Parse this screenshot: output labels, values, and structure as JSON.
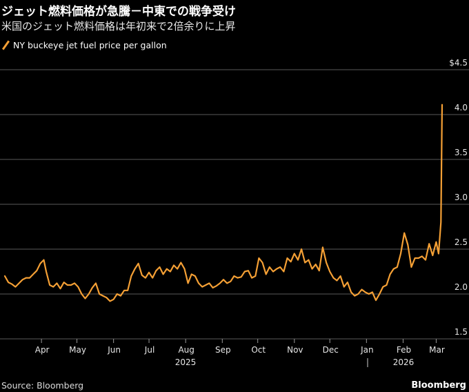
{
  "header": {
    "title": "ジェット燃料価格が急騰－中東での戦争受け",
    "subtitle": "米国のジェット燃料価格は年初来で2倍余りに上昇"
  },
  "footer": {
    "source": "Source: Bloomberg",
    "brand": "Bloomberg"
  },
  "colors": {
    "series": "#f5a035",
    "grid": "#5a5a5a",
    "background": "#000000"
  },
  "chart_data": {
    "type": "line",
    "title": "ジェット燃料価格が急騰－中東での戦争受け",
    "subtitle": "米国のジェット燃料価格は年初来で2倍余りに上昇",
    "xlabel": "",
    "ylabel": "",
    "ylim": [
      1.5,
      4.5
    ],
    "y_ticks": [
      "1.5",
      "2.0",
      "2.5",
      "3.0",
      "3.5",
      "4.0",
      "$4.5"
    ],
    "y_tick_values": [
      1.5,
      2.0,
      2.5,
      3.0,
      3.5,
      4.0,
      4.5
    ],
    "x_month_labels": [
      "Apr",
      "May",
      "Jun",
      "Jul",
      "Aug",
      "Sep",
      "Oct",
      "Nov",
      "Dec",
      "Jan",
      "Feb",
      "Mar"
    ],
    "x_year_labels": [
      "2025",
      "2026"
    ],
    "grid": true,
    "axis_side": "right",
    "legend_position": "top-left",
    "series": [
      {
        "name": "NY buckeye jet fuel price per gallon",
        "x": [
          "2025-03-01",
          "2025-03-04",
          "2025-03-07",
          "2025-03-10",
          "2025-03-13",
          "2025-03-16",
          "2025-03-19",
          "2025-03-22",
          "2025-03-25",
          "2025-03-28",
          "2025-03-31",
          "2025-04-03",
          "2025-04-05",
          "2025-04-08",
          "2025-04-11",
          "2025-04-14",
          "2025-04-17",
          "2025-04-20",
          "2025-04-23",
          "2025-04-26",
          "2025-04-29",
          "2025-05-02",
          "2025-05-05",
          "2025-05-08",
          "2025-05-11",
          "2025-05-14",
          "2025-05-17",
          "2025-05-20",
          "2025-05-23",
          "2025-05-26",
          "2025-05-29",
          "2025-06-01",
          "2025-06-04",
          "2025-06-07",
          "2025-06-10",
          "2025-06-13",
          "2025-06-16",
          "2025-06-19",
          "2025-06-22",
          "2025-06-25",
          "2025-06-28",
          "2025-07-01",
          "2025-07-04",
          "2025-07-07",
          "2025-07-10",
          "2025-07-13",
          "2025-07-16",
          "2025-07-19",
          "2025-07-22",
          "2025-07-25",
          "2025-07-28",
          "2025-07-31",
          "2025-08-03",
          "2025-08-06",
          "2025-08-09",
          "2025-08-12",
          "2025-08-15",
          "2025-08-18",
          "2025-08-21",
          "2025-08-24",
          "2025-08-27",
          "2025-08-30",
          "2025-09-02",
          "2025-09-05",
          "2025-09-08",
          "2025-09-11",
          "2025-09-14",
          "2025-09-17",
          "2025-09-20",
          "2025-09-23",
          "2025-09-26",
          "2025-09-29",
          "2025-10-02",
          "2025-10-05",
          "2025-10-08",
          "2025-10-11",
          "2025-10-14",
          "2025-10-17",
          "2025-10-20",
          "2025-10-23",
          "2025-10-26",
          "2025-10-29",
          "2025-11-01",
          "2025-11-04",
          "2025-11-07",
          "2025-11-10",
          "2025-11-13",
          "2025-11-16",
          "2025-11-19",
          "2025-11-22",
          "2025-11-25",
          "2025-11-28",
          "2025-12-01",
          "2025-12-04",
          "2025-12-07",
          "2025-12-10",
          "2025-12-13",
          "2025-12-16",
          "2025-12-19",
          "2025-12-22",
          "2025-12-25",
          "2025-12-28",
          "2025-12-31",
          "2026-01-03",
          "2026-01-06",
          "2026-01-09",
          "2026-01-12",
          "2026-01-15",
          "2026-01-18",
          "2026-01-21",
          "2026-01-24",
          "2026-01-27",
          "2026-01-30",
          "2026-02-02",
          "2026-02-05",
          "2026-02-08",
          "2026-02-11",
          "2026-02-14",
          "2026-02-17",
          "2026-02-20",
          "2026-02-23",
          "2026-02-26",
          "2026-03-01",
          "2026-03-03",
          "2026-03-05",
          "2026-03-06"
        ],
        "values": [
          2.2,
          2.13,
          2.11,
          2.08,
          2.12,
          2.16,
          2.18,
          2.18,
          2.22,
          2.26,
          2.34,
          2.38,
          2.25,
          2.1,
          2.08,
          2.12,
          2.06,
          2.13,
          2.1,
          2.1,
          2.12,
          2.08,
          2.0,
          1.95,
          2.0,
          2.07,
          2.12,
          2.0,
          1.98,
          1.96,
          1.92,
          1.94,
          2.0,
          1.98,
          2.04,
          2.04,
          2.2,
          2.28,
          2.34,
          2.21,
          2.18,
          2.24,
          2.18,
          2.26,
          2.3,
          2.22,
          2.28,
          2.25,
          2.32,
          2.28,
          2.35,
          2.28,
          2.12,
          2.22,
          2.2,
          2.12,
          2.08,
          2.1,
          2.12,
          2.07,
          2.09,
          2.12,
          2.16,
          2.12,
          2.14,
          2.2,
          2.18,
          2.19,
          2.25,
          2.26,
          2.18,
          2.2,
          2.4,
          2.35,
          2.22,
          2.3,
          2.25,
          2.28,
          2.3,
          2.25,
          2.4,
          2.36,
          2.45,
          2.38,
          2.5,
          2.35,
          2.38,
          2.28,
          2.33,
          2.26,
          2.52,
          2.35,
          2.25,
          2.18,
          2.15,
          2.2,
          2.08,
          2.13,
          2.02,
          1.98,
          2.0,
          2.05,
          2.02,
          2.0,
          2.02,
          1.93,
          2.0,
          2.08,
          2.1,
          2.22,
          2.28,
          2.3,
          2.45,
          2.68,
          2.55,
          2.3,
          2.4,
          2.4,
          2.42,
          2.38,
          2.56,
          2.43,
          2.58,
          2.45,
          2.8,
          4.11
        ]
      }
    ]
  }
}
